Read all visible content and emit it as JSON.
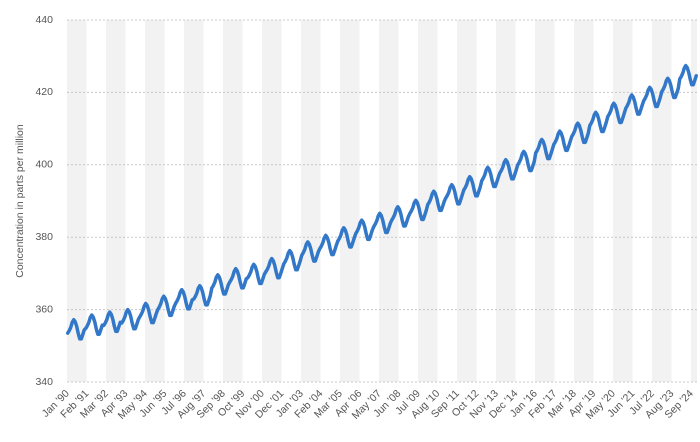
{
  "chart_data": {
    "type": "line",
    "y_label": "Concentration in parts per million",
    "color": "#3277c8",
    "grid": true,
    "ylim": [
      340,
      440
    ],
    "yticks": [
      340,
      360,
      380,
      400,
      420,
      440
    ],
    "categories": [
      "Jan '90",
      null,
      null,
      null,
      null,
      null,
      null,
      null,
      null,
      null,
      null,
      null,
      null,
      "Feb '91",
      null,
      null,
      null,
      null,
      null,
      null,
      null,
      null,
      null,
      null,
      null,
      null,
      "Mar '92",
      null,
      null,
      null,
      null,
      null,
      null,
      null,
      null,
      null,
      null,
      null,
      null,
      "Apr '93",
      null,
      null,
      null,
      null,
      null,
      null,
      null,
      null,
      null,
      null,
      null,
      null,
      "May '94",
      null,
      null,
      null,
      null,
      null,
      null,
      null,
      null,
      null,
      null,
      null,
      null,
      "Jun '95",
      null,
      null,
      null,
      null,
      null,
      null,
      null,
      null,
      null,
      null,
      null,
      null,
      "Jul '96",
      null,
      null,
      null,
      null,
      null,
      null,
      null,
      null,
      null,
      null,
      null,
      null,
      "Aug '97",
      null,
      null,
      null,
      null,
      null,
      null,
      null,
      null,
      null,
      null,
      null,
      null,
      "Sep '98",
      null,
      null,
      null,
      null,
      null,
      null,
      null,
      null,
      null,
      null,
      null,
      null,
      "Oct '99",
      null,
      null,
      null,
      null,
      null,
      null,
      null,
      null,
      null,
      null,
      null,
      null,
      "Nov '00",
      null,
      null,
      null,
      null,
      null,
      null,
      null,
      null,
      null,
      null,
      null,
      null,
      "Dec '01",
      null,
      null,
      null,
      null,
      null,
      null,
      null,
      null,
      null,
      null,
      null,
      null,
      "Jan '03",
      null,
      null,
      null,
      null,
      null,
      null,
      null,
      null,
      null,
      null,
      null,
      null,
      "Feb '04",
      null,
      null,
      null,
      null,
      null,
      null,
      null,
      null,
      null,
      null,
      null,
      null,
      "Mar '05",
      null,
      null,
      null,
      null,
      null,
      null,
      null,
      null,
      null,
      null,
      null,
      null,
      "Apr '06",
      null,
      null,
      null,
      null,
      null,
      null,
      null,
      null,
      null,
      null,
      null,
      null,
      "May '07",
      null,
      null,
      null,
      null,
      null,
      null,
      null,
      null,
      null,
      null,
      null,
      null,
      "Jun '08",
      null,
      null,
      null,
      null,
      null,
      null,
      null,
      null,
      null,
      null,
      null,
      null,
      "Jul '09",
      null,
      null,
      null,
      null,
      null,
      null,
      null,
      null,
      null,
      null,
      null,
      null,
      "Aug '10",
      null,
      null,
      null,
      null,
      null,
      null,
      null,
      null,
      null,
      null,
      null,
      null,
      "Sep '11",
      null,
      null,
      null,
      null,
      null,
      null,
      null,
      null,
      null,
      null,
      null,
      null,
      "Oct '12",
      null,
      null,
      null,
      null,
      null,
      null,
      null,
      null,
      null,
      null,
      null,
      null,
      "Nov '13",
      null,
      null,
      null,
      null,
      null,
      null,
      null,
      null,
      null,
      null,
      null,
      null,
      "Dec '14",
      null,
      null,
      null,
      null,
      null,
      null,
      null,
      null,
      null,
      null,
      null,
      null,
      "Jan '16",
      null,
      null,
      null,
      null,
      null,
      null,
      null,
      null,
      null,
      null,
      null,
      null,
      "Feb '17",
      null,
      null,
      null,
      null,
      null,
      null,
      null,
      null,
      null,
      null,
      null,
      null,
      "Mar '18",
      null,
      null,
      null,
      null,
      null,
      null,
      null,
      null,
      null,
      null,
      null,
      null,
      "Apr '19",
      null,
      null,
      null,
      null,
      null,
      null,
      null,
      null,
      null,
      null,
      null,
      null,
      "May '20",
      null,
      null,
      null,
      null,
      null,
      null,
      null,
      null,
      null,
      null,
      null,
      null,
      "Jun '21",
      null,
      null,
      null,
      null,
      null,
      null,
      null,
      null,
      null,
      null,
      null,
      null,
      "Jul '22",
      null,
      null,
      null,
      null,
      null,
      null,
      null,
      null,
      null,
      null,
      null,
      null,
      "Aug '23",
      null,
      null,
      null,
      null,
      null,
      null,
      null,
      null,
      null,
      null,
      null,
      null,
      "Sep '24",
      null,
      null,
      null
    ],
    "values": [
      353.5,
      354.2,
      355.1,
      356.5,
      357.2,
      356.6,
      355.3,
      353.4,
      351.9,
      351.9,
      353.1,
      354.4,
      354.8,
      355.5,
      356.4,
      357.8,
      358.5,
      357.9,
      356.6,
      354.7,
      353.2,
      353.2,
      354.4,
      355.7,
      355.6,
      356.3,
      357.2,
      358.6,
      359.3,
      358.7,
      357.4,
      355.5,
      354.0,
      354.0,
      355.2,
      356.5,
      356.3,
      357.0,
      357.9,
      359.3,
      360.0,
      359.4,
      358.1,
      356.2,
      354.7,
      354.7,
      355.9,
      357.2,
      358.0,
      358.7,
      359.6,
      361.0,
      361.7,
      361.1,
      359.8,
      357.9,
      356.4,
      356.4,
      357.6,
      358.9,
      360.0,
      360.7,
      361.6,
      363.0,
      363.7,
      363.1,
      361.8,
      359.9,
      358.4,
      358.4,
      359.6,
      360.9,
      361.8,
      362.5,
      363.4,
      364.8,
      365.5,
      364.9,
      363.6,
      361.7,
      360.2,
      360.2,
      361.4,
      362.7,
      362.9,
      363.6,
      364.5,
      365.9,
      366.6,
      366.0,
      364.7,
      362.8,
      361.3,
      361.3,
      362.5,
      363.8,
      365.9,
      366.6,
      367.5,
      368.9,
      369.6,
      369.0,
      367.7,
      365.8,
      364.3,
      364.3,
      365.5,
      366.8,
      367.6,
      368.3,
      369.2,
      370.6,
      371.3,
      370.7,
      369.4,
      367.5,
      366.0,
      366.0,
      367.2,
      368.5,
      368.8,
      369.5,
      370.4,
      371.8,
      372.5,
      371.9,
      370.6,
      368.7,
      367.2,
      367.2,
      368.4,
      369.7,
      370.4,
      371.1,
      372.0,
      373.4,
      374.1,
      373.5,
      372.2,
      370.3,
      368.8,
      368.8,
      370.0,
      371.3,
      372.6,
      373.3,
      374.2,
      375.6,
      376.3,
      375.7,
      374.4,
      372.5,
      371.0,
      371.0,
      372.2,
      373.5,
      375.0,
      375.7,
      376.6,
      378.0,
      378.7,
      378.1,
      376.8,
      374.9,
      373.4,
      373.4,
      374.6,
      375.9,
      376.8,
      377.5,
      378.4,
      379.8,
      380.5,
      379.9,
      378.6,
      376.7,
      375.2,
      375.2,
      376.4,
      377.7,
      378.9,
      379.6,
      380.5,
      381.9,
      382.6,
      382.0,
      380.7,
      378.8,
      377.3,
      377.3,
      378.5,
      379.8,
      381.0,
      381.7,
      382.6,
      384.0,
      384.7,
      384.1,
      382.8,
      380.9,
      379.4,
      379.4,
      380.6,
      381.9,
      382.9,
      383.6,
      384.5,
      385.9,
      386.6,
      386.0,
      384.7,
      382.8,
      381.3,
      381.3,
      382.5,
      383.8,
      384.7,
      385.4,
      386.3,
      387.7,
      388.4,
      387.8,
      386.5,
      384.6,
      383.1,
      383.1,
      384.3,
      385.6,
      386.5,
      387.2,
      388.1,
      389.5,
      390.2,
      389.6,
      388.3,
      386.4,
      384.9,
      384.9,
      386.1,
      387.4,
      389.0,
      389.7,
      390.6,
      392.0,
      392.7,
      392.1,
      390.8,
      388.9,
      387.4,
      387.4,
      388.6,
      389.9,
      390.8,
      391.5,
      392.4,
      393.8,
      394.5,
      393.9,
      392.6,
      390.7,
      389.2,
      389.2,
      390.4,
      391.7,
      393.0,
      393.7,
      394.6,
      396.0,
      396.7,
      396.1,
      394.8,
      392.9,
      391.4,
      391.4,
      392.6,
      393.9,
      395.6,
      396.3,
      397.2,
      398.6,
      399.3,
      398.7,
      397.4,
      395.5,
      394.0,
      394.0,
      395.2,
      396.5,
      397.7,
      398.4,
      399.3,
      400.7,
      401.4,
      400.8,
      399.5,
      397.6,
      396.1,
      396.1,
      397.3,
      398.6,
      400.0,
      400.7,
      401.6,
      403.0,
      403.7,
      403.1,
      401.8,
      399.9,
      398.4,
      398.4,
      399.6,
      400.9,
      403.3,
      404.0,
      404.9,
      406.3,
      407.0,
      406.4,
      405.1,
      403.2,
      401.7,
      401.7,
      402.9,
      404.2,
      405.6,
      406.3,
      407.2,
      408.6,
      409.3,
      408.7,
      407.4,
      405.5,
      404.0,
      404.0,
      405.2,
      406.5,
      407.8,
      408.5,
      409.4,
      410.8,
      411.5,
      410.9,
      409.6,
      407.7,
      406.2,
      406.2,
      407.4,
      408.7,
      410.8,
      411.5,
      412.4,
      413.8,
      414.5,
      413.9,
      412.6,
      410.7,
      409.2,
      409.2,
      410.4,
      411.7,
      413.3,
      414.0,
      414.9,
      416.3,
      417.0,
      416.4,
      415.1,
      413.2,
      411.7,
      411.7,
      412.9,
      414.2,
      415.6,
      416.3,
      417.2,
      418.6,
      419.3,
      418.7,
      417.4,
      415.5,
      414.0,
      414.0,
      415.2,
      416.5,
      417.7,
      418.4,
      419.3,
      420.7,
      421.4,
      420.8,
      419.5,
      417.6,
      416.1,
      416.1,
      417.3,
      418.6,
      420.2,
      420.9,
      421.8,
      423.2,
      423.9,
      423.3,
      422.0,
      420.1,
      418.6,
      418.6,
      419.8,
      421.1,
      423.7,
      424.4,
      425.3,
      426.7,
      427.4,
      426.8,
      425.5,
      423.6,
      422.1,
      422.1,
      423.3,
      424.6
    ]
  }
}
